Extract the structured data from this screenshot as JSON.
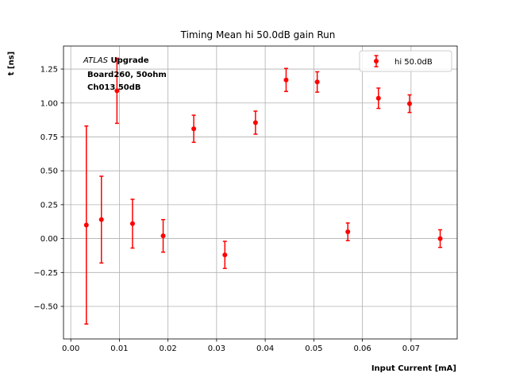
{
  "chart_data": {
    "type": "scatter",
    "title": "Timing Mean hi 50.0dB gain Run",
    "xlabel": "Input Current [mA]",
    "ylabel": "t [ns]",
    "xlim": [
      -0.0015,
      0.0795
    ],
    "ylim": [
      -0.74,
      1.42
    ],
    "xticks": [
      0.0,
      0.01,
      0.02,
      0.03,
      0.04,
      0.05,
      0.06,
      0.07
    ],
    "xtick_labels": [
      "0.00",
      "0.01",
      "0.02",
      "0.03",
      "0.04",
      "0.05",
      "0.06",
      "0.07"
    ],
    "yticks": [
      -0.5,
      -0.25,
      0.0,
      0.25,
      0.5,
      0.75,
      1.0,
      1.25
    ],
    "ytick_labels": [
      "−0.50",
      "−0.25",
      "0.00",
      "0.25",
      "0.50",
      "0.75",
      "1.00",
      "1.25"
    ],
    "grid": true,
    "legend_position": "top-right",
    "annotation": {
      "atlas": "ATLAS",
      "line1_rest": " Upgrade",
      "line2": "Board260, 50ohm",
      "line3": "Ch013 50dB"
    },
    "series": [
      {
        "name": "hi 50.0dB",
        "color": "#ff0000",
        "x": [
          0.0032,
          0.0063,
          0.0095,
          0.0127,
          0.019,
          0.0253,
          0.0317,
          0.038,
          0.0443,
          0.0507,
          0.057,
          0.0633,
          0.0697,
          0.076
        ],
        "y": [
          0.1,
          0.14,
          1.09,
          0.11,
          0.02,
          0.81,
          -0.12,
          0.855,
          1.17,
          1.155,
          0.05,
          1.035,
          0.995,
          0.0
        ],
        "yerr": [
          0.73,
          0.32,
          0.24,
          0.18,
          0.12,
          0.1,
          0.1,
          0.085,
          0.085,
          0.075,
          0.065,
          0.075,
          0.065,
          0.065
        ]
      }
    ]
  }
}
